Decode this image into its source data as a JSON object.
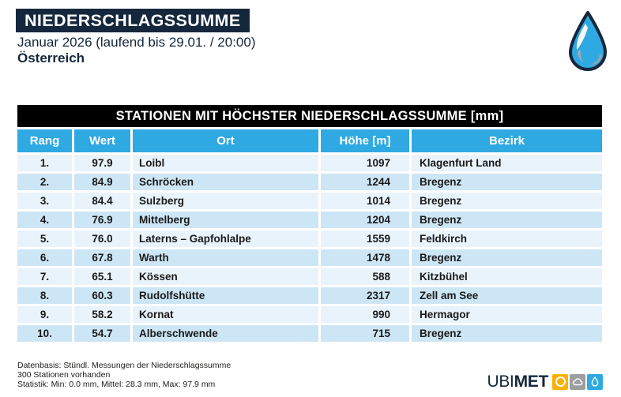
{
  "header": {
    "title": "NIEDERSCHLAGSSUMME",
    "subtitle": "Januar 2026 (laufend bis 29.01. / 20:00)",
    "region": "Österreich"
  },
  "chart_data": {
    "type": "table",
    "title": "STATIONEN MIT HÖCHSTER NIEDERSCHLAGSSUMME [mm]",
    "unit": "mm",
    "columns": [
      "Rang",
      "Wert",
      "Ort",
      "Höhe [m]",
      "Bezirk"
    ],
    "rows": [
      {
        "rang": "1.",
        "wert": "97.9",
        "ort": "Loibl",
        "hoehe": "1097",
        "bezirk": "Klagenfurt Land"
      },
      {
        "rang": "2.",
        "wert": "84.9",
        "ort": "Schröcken",
        "hoehe": "1244",
        "bezirk": "Bregenz"
      },
      {
        "rang": "3.",
        "wert": "84.4",
        "ort": "Sulzberg",
        "hoehe": "1014",
        "bezirk": "Bregenz"
      },
      {
        "rang": "4.",
        "wert": "76.9",
        "ort": "Mittelberg",
        "hoehe": "1204",
        "bezirk": "Bregenz"
      },
      {
        "rang": "5.",
        "wert": "76.0",
        "ort": "Laterns – Gapfohlalpe",
        "hoehe": "1559",
        "bezirk": "Feldkirch"
      },
      {
        "rang": "6.",
        "wert": "67.8",
        "ort": "Warth",
        "hoehe": "1478",
        "bezirk": "Bregenz"
      },
      {
        "rang": "7.",
        "wert": "65.1",
        "ort": "Kössen",
        "hoehe": "588",
        "bezirk": "Kitzbühel"
      },
      {
        "rang": "8.",
        "wert": "60.3",
        "ort": "Rudolfshütte",
        "hoehe": "2317",
        "bezirk": "Zell am See"
      },
      {
        "rang": "9.",
        "wert": "58.2",
        "ort": "Kornat",
        "hoehe": "990",
        "bezirk": "Hermagor"
      },
      {
        "rang": "10.",
        "wert": "54.7",
        "ort": "Alberschwende",
        "hoehe": "715",
        "bezirk": "Bregenz"
      }
    ]
  },
  "footer": {
    "line1": "Datenbasis: Stündl. Messungen der Niederschlagssumme",
    "line2": "300 Stationen vorhanden",
    "line3": "Statistik: Min: 0.0 mm, Mittel: 28.3 mm, Max: 97.9 mm"
  },
  "brand": {
    "name_regular": "UBI",
    "name_bold": "MET"
  },
  "icons": {
    "top_right": "water-drop-icon",
    "logo_squares": [
      "sun-icon",
      "cloud-icon",
      "drop-icon"
    ]
  },
  "colors": {
    "navy": "#15273C",
    "table_header_blue": "#2FA9E2",
    "row_light": "#E9F3FB",
    "row_dark": "#CDE6F5",
    "title_bar_black": "#000000",
    "logo_yellow": "#F9B104",
    "logo_gray": "#9C9E9F",
    "logo_blue": "#2FA9E2"
  }
}
